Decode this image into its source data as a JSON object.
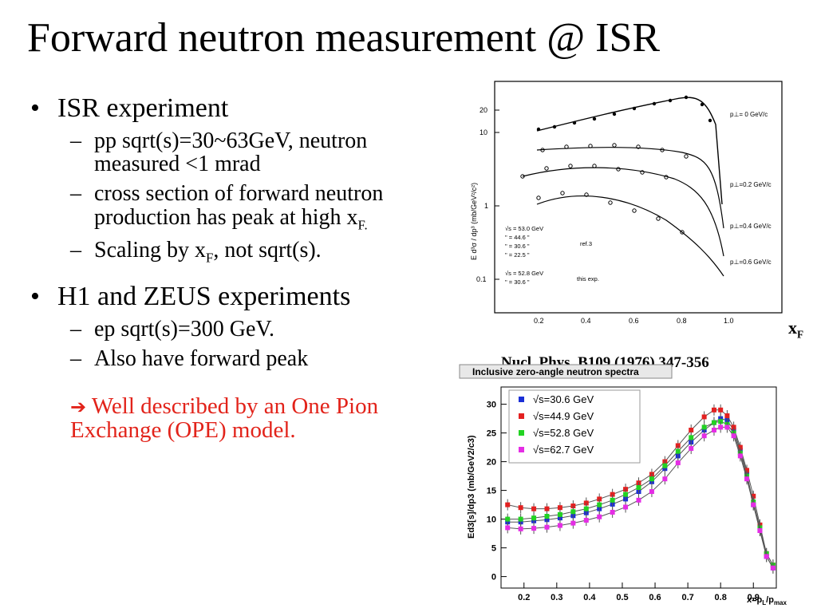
{
  "slide": {
    "title": "Forward neutron measurement @ ISR"
  },
  "bullets": {
    "isr": {
      "label": "ISR experiment",
      "sub1": "pp sqrt(s)=30~63GeV, neutron measured <1 mrad",
      "sub2_main": "cross section of forward neutron production has peak at high x",
      "sub2_sub": "F.",
      "sub3_a": "Scaling by x",
      "sub3_sub": "F",
      "sub3_b": ", not sqrt(s)."
    },
    "h1": {
      "label": "H1 and ZEUS experiments",
      "sub1": "ep sqrt(s)=300 GeV.",
      "sub2": "Also have forward peak"
    },
    "note": "Well described by an One Pion Exchange (OPE) model.",
    "dash": "–"
  },
  "figure_top": {
    "reference": "Nucl. Phys. B109 (1976) 347-356",
    "xf_label": "x",
    "xf_sub": "F",
    "ylabel": "E d³σ / dp³ (mb/GeV²/c²)",
    "x_ticks": [
      "0.2",
      "0.4",
      "0.6",
      "0.8",
      "1.0"
    ],
    "y_ticks": [
      "20",
      "10",
      "1",
      "0.1"
    ],
    "pt_labels": [
      "p⊥= 0 GeV/c",
      "p⊥=0.2 GeV/c",
      "p⊥=0.4 GeV/c",
      "p⊥=0.6 GeV/c"
    ],
    "legend": [
      "√s = 53.0 GeV",
      "\" = 44.6 \"",
      "\" = 30.6 \"",
      "\" = 22.5 \"",
      "√s = 52.8 GeV",
      "\" = 30.6 \""
    ],
    "legend_ref1": "ref.3",
    "legend_ref2": "this exp."
  },
  "figure_bottom": {
    "header": "Inclusive zero-angle neutron spectra",
    "ylabel": "Ed3[s]/dp3 (mb/GeV2/c3)",
    "xlabel": "x=p",
    "xlabel_sub1": "L",
    "xlabel_mid": "/p",
    "xlabel_sub2": "max",
    "colors": {
      "s30": "#1a2fd6",
      "s44": "#e32020",
      "s52": "#22d322",
      "s62": "#e52de5"
    }
  },
  "chart_data": {
    "type": "line",
    "title": "Inclusive zero-angle neutron spectra",
    "xlabel": "x=pL/pmax",
    "ylabel": "Ed3[s]/dp3 (mb/GeV2/c3)",
    "xlim": [
      0.13,
      0.97
    ],
    "ylim": [
      -2,
      33
    ],
    "x_ticks": [
      0.2,
      0.3,
      0.4,
      0.5,
      0.6,
      0.7,
      0.8,
      0.9
    ],
    "y_ticks": [
      0,
      5,
      10,
      15,
      20,
      25,
      30
    ],
    "grid": false,
    "legend_position": "top-left",
    "x": [
      0.15,
      0.19,
      0.23,
      0.27,
      0.31,
      0.35,
      0.39,
      0.43,
      0.47,
      0.51,
      0.55,
      0.59,
      0.63,
      0.67,
      0.71,
      0.75,
      0.78,
      0.8,
      0.82,
      0.84,
      0.86,
      0.88,
      0.9,
      0.92,
      0.94,
      0.96
    ],
    "series": [
      {
        "name": "√s=30.6 GeV",
        "color": "#1a2fd6",
        "values": [
          9.5,
          9.5,
          9.7,
          9.9,
          10.2,
          10.6,
          11.1,
          11.8,
          12.6,
          13.5,
          14.8,
          16.5,
          18.8,
          21.0,
          23.4,
          25.5,
          26.8,
          27.5,
          27.2,
          25.5,
          22.0,
          18.0,
          12.5,
          8.0,
          3.5,
          1.5
        ]
      },
      {
        "name": "√s=44.9 GeV",
        "color": "#e32020",
        "values": [
          12.5,
          12.0,
          11.8,
          11.8,
          12.0,
          12.3,
          12.8,
          13.5,
          14.3,
          15.2,
          16.3,
          17.8,
          20.0,
          22.8,
          25.5,
          27.8,
          29.0,
          29.0,
          28.0,
          26.0,
          22.5,
          18.5,
          14.0,
          9.0,
          4.0,
          2.0
        ]
      },
      {
        "name": "√s=52.8 GeV",
        "color": "#22d322",
        "values": [
          10.0,
          10.0,
          10.2,
          10.5,
          10.8,
          11.3,
          11.8,
          12.5,
          13.3,
          14.3,
          15.5,
          17.0,
          19.3,
          21.8,
          24.2,
          26.0,
          26.8,
          27.0,
          26.5,
          25.0,
          21.5,
          17.5,
          13.0,
          8.5,
          4.0,
          2.0
        ]
      },
      {
        "name": "√s=62.7 GeV",
        "color": "#e52de5",
        "values": [
          8.5,
          8.3,
          8.4,
          8.6,
          8.9,
          9.3,
          9.8,
          10.4,
          11.2,
          12.1,
          13.3,
          14.8,
          17.0,
          19.8,
          22.3,
          24.5,
          25.5,
          26.0,
          26.0,
          24.5,
          21.0,
          17.0,
          12.5,
          8.0,
          3.5,
          1.5
        ]
      }
    ]
  }
}
